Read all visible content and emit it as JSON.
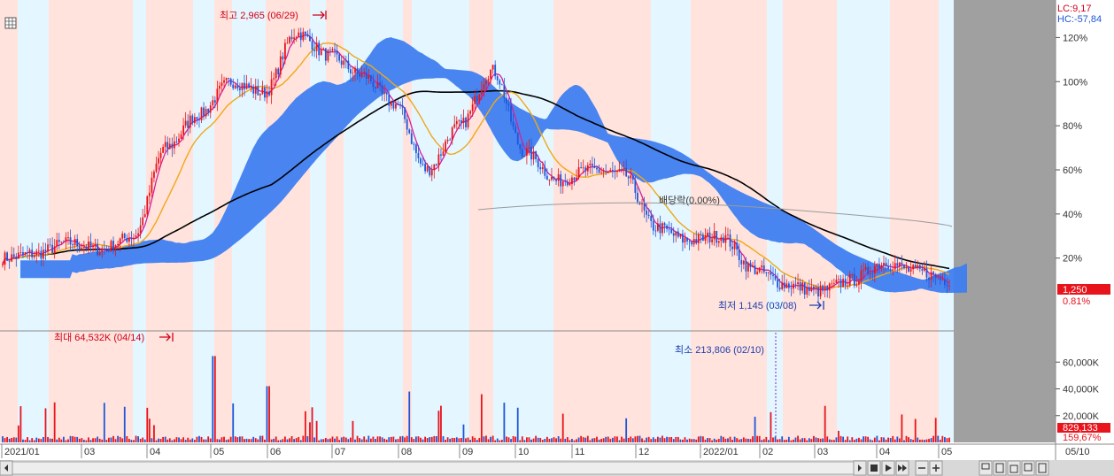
{
  "header": {
    "lc_label": "LC:9,17",
    "hc_label": "HC:-57,84"
  },
  "annotations": {
    "price_high": "최고 2,965 (06/29)",
    "price_low": "최저 1,145 (03/08)",
    "dividend": "배당락(0.00%)",
    "volume_max": "최대 64,532K (04/14)",
    "volume_min": "최소 213,806 (02/10)"
  },
  "badges": {
    "current_price": "1,250",
    "change_pct": "0.81%",
    "current_volume": "829,133",
    "volume_pct": "159,67%"
  },
  "bottom_bar": {
    "last_date": "05/10"
  },
  "colors": {
    "up": "#e8141c",
    "down": "#1e56d8",
    "cloud": "#3f7ef0",
    "ma_short": "#d61f9a",
    "ma_mid": "#f0a818",
    "ma_long": "#000000",
    "band_pink": "#ffe3dc",
    "band_blue": "#e4f6ff",
    "right_panel": "#a0a0a0",
    "badge": "#e8141c"
  },
  "icons": [
    "grid-icon",
    "scroll-left-icon",
    "scroll-right-icon",
    "stop-icon",
    "play-icon",
    "fast-forward-icon",
    "zoom-minus-icon",
    "zoom-plus-icon",
    "layout-icon"
  ],
  "chart_data": {
    "type": "candlestick",
    "x_ticks": [
      "2021/01",
      "03",
      "04",
      "05",
      "06",
      "07",
      "08",
      "09",
      "10",
      "11",
      "12",
      "2022/01",
      "02",
      "03",
      "04",
      "05"
    ],
    "y_ticks": [
      "120%",
      "100%",
      "80%",
      "60%",
      "40%",
      "20%"
    ],
    "volume_ticks": [
      "60,000K",
      "40,000K",
      "20,000K"
    ],
    "ylim_pct": [
      -13,
      137
    ],
    "volume_ylim": [
      0,
      82000
    ],
    "series_close_pct": [
      [
        "2021/01",
        20
      ],
      [
        "2021/02",
        22
      ],
      [
        "2021/03",
        27
      ],
      [
        "2021/03b",
        24
      ],
      [
        "2021/04",
        30
      ],
      [
        "2021/04b",
        70
      ],
      [
        "2021/05",
        85
      ],
      [
        "2021/05b",
        100
      ],
      [
        "2021/06",
        95
      ],
      [
        "2021/06b",
        122
      ],
      [
        "2021/07",
        112
      ],
      [
        "2021/07b",
        103
      ],
      [
        "2021/08",
        90
      ],
      [
        "2021/08b",
        60
      ],
      [
        "2021/09",
        80
      ],
      [
        "2021/09b",
        105
      ],
      [
        "2021/10",
        68
      ],
      [
        "2021/10b",
        55
      ],
      [
        "2021/11",
        60
      ],
      [
        "2021/11b",
        58
      ],
      [
        "2021/12",
        34
      ],
      [
        "2021/12b",
        28
      ],
      [
        "2022/01",
        30
      ],
      [
        "2022/01b",
        15
      ],
      [
        "2022/02",
        8
      ],
      [
        "2022/03",
        5
      ],
      [
        "2022/03b",
        10
      ],
      [
        "2022/04",
        18
      ],
      [
        "2022/04b",
        14
      ],
      [
        "2022/05",
        10
      ]
    ]
  }
}
